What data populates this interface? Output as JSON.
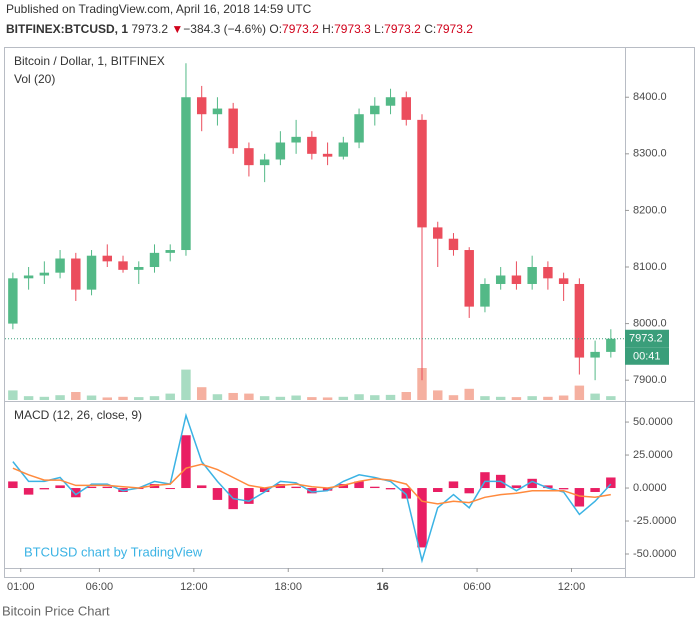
{
  "header": {
    "published": "Published on TradingView.com, April 16, 2018 14:59 UTC",
    "symbol": "BITFINEX:BTCUSD, 1",
    "last": "7973.2",
    "arrow": "▼",
    "change": "−384.3 (−4.6%)",
    "ohlc": [
      {
        "label": "O:",
        "value": "7973.2"
      },
      {
        "label": "H:",
        "value": "7973.3"
      },
      {
        "label": "L:",
        "value": "7973.2"
      },
      {
        "label": "C:",
        "value": "7973.2"
      }
    ]
  },
  "caption": "Bitcoin Price Chart",
  "chart_data": [
    {
      "type": "candlestick",
      "title": "Bitcoin / Dollar, 1, BITFINEX",
      "volume_title": "Vol (20)",
      "watermark": "BTCUSD chart by TradingView",
      "up_color": "#53b987",
      "down_color": "#eb4d5c",
      "volume_up_color": "#a8dcc2",
      "volume_down_color": "#f5b0a0",
      "x": [
        0.5,
        1.5,
        2.5,
        3.5,
        4.5,
        5.5,
        6.5,
        7.5,
        8.5,
        9.5,
        10.5,
        11.5,
        12.5,
        13.5,
        14.5,
        15.5,
        16.5,
        17.5,
        18.5,
        19.5,
        20.5,
        21.5,
        22.5,
        23.5,
        24.5,
        25.5,
        26.5,
        27.5,
        28.5,
        29.5,
        30.5,
        31.5,
        32.5,
        33.5,
        34.5,
        35.5,
        36.5,
        37.5,
        38.5
      ],
      "open": [
        8000,
        8080,
        8085,
        8090,
        8115,
        8060,
        8120,
        8110,
        8095,
        8100,
        8125,
        8130,
        8400,
        8370,
        8380,
        8310,
        8280,
        8290,
        8320,
        8330,
        8300,
        8295,
        8320,
        8370,
        8385,
        8400,
        8360,
        8170,
        8150,
        8130,
        8030,
        8070,
        8085,
        8070,
        8100,
        8080,
        8070,
        7940,
        7950
      ],
      "high": [
        8090,
        8100,
        8110,
        8130,
        8125,
        8130,
        8140,
        8120,
        8110,
        8140,
        8140,
        8460,
        8420,
        8400,
        8390,
        8320,
        8300,
        8340,
        8360,
        8340,
        8320,
        8330,
        8380,
        8400,
        8415,
        8410,
        8370,
        8180,
        8160,
        8135,
        8080,
        8100,
        8110,
        8120,
        8110,
        8090,
        8080,
        7970,
        7990
      ],
      "low": [
        7990,
        8060,
        8070,
        8080,
        8040,
        8050,
        8100,
        8090,
        8070,
        8090,
        8110,
        8120,
        8340,
        8350,
        8300,
        8260,
        8250,
        8280,
        8300,
        8290,
        8280,
        8290,
        8310,
        8350,
        8370,
        8350,
        7900,
        8100,
        8120,
        8010,
        8020,
        8060,
        8060,
        8060,
        8060,
        8040,
        7910,
        7900,
        7940
      ],
      "close": [
        8080,
        8085,
        8090,
        8115,
        8060,
        8120,
        8110,
        8095,
        8100,
        8125,
        8130,
        8400,
        8370,
        8380,
        8310,
        8280,
        8290,
        8320,
        8330,
        8300,
        8295,
        8320,
        8370,
        8385,
        8400,
        8360,
        8170,
        8150,
        8130,
        8030,
        8070,
        8085,
        8070,
        8100,
        8080,
        8070,
        7940,
        7950,
        7973.2
      ],
      "volume": [
        30,
        12,
        10,
        15,
        25,
        14,
        8,
        10,
        9,
        12,
        20,
        95,
        40,
        18,
        22,
        20,
        12,
        10,
        14,
        9,
        8,
        10,
        18,
        15,
        16,
        25,
        100,
        30,
        15,
        35,
        12,
        10,
        9,
        12,
        10,
        14,
        45,
        20,
        12
      ],
      "last_price": 7973.2,
      "countdown": "00:41",
      "xlim": [
        0,
        39.4
      ],
      "xticks": [
        {
          "value": 1,
          "label": "01:00"
        },
        {
          "value": 6,
          "label": "06:00"
        },
        {
          "value": 12,
          "label": "12:00"
        },
        {
          "value": 18,
          "label": "18:00"
        },
        {
          "value": 24,
          "label": "16"
        },
        {
          "value": 30,
          "label": "06:00"
        },
        {
          "value": 36,
          "label": "12:00"
        }
      ],
      "ylim": [
        7865,
        8487
      ],
      "yticks": [
        {
          "value": 7900,
          "label": "7900.0"
        },
        {
          "value": 8000,
          "label": "8000.0"
        },
        {
          "value": 8100,
          "label": "8100.0"
        },
        {
          "value": 8200,
          "label": "8200.0"
        },
        {
          "value": 8300,
          "label": "8300.0"
        },
        {
          "value": 8400,
          "label": "8400.0"
        }
      ]
    },
    {
      "type": "macd",
      "title": "MACD (12, 26, close, 9)",
      "series": [
        {
          "name": "MACD",
          "color": "#3bb3e4",
          "values": [
            20,
            5,
            5,
            8,
            -5,
            3,
            3,
            -2,
            0,
            5,
            3,
            55,
            20,
            5,
            -8,
            -10,
            -3,
            5,
            4,
            -3,
            -2,
            5,
            10,
            8,
            5,
            -5,
            -55,
            -15,
            -5,
            -15,
            5,
            5,
            -2,
            5,
            0,
            -3,
            -20,
            -10,
            3
          ]
        },
        {
          "name": "Signal",
          "color": "#ff8a3d",
          "values": [
            15,
            10,
            6,
            6,
            2,
            2,
            2,
            1,
            0,
            2,
            3,
            15,
            18,
            14,
            8,
            2,
            0,
            2,
            3,
            1,
            0,
            2,
            5,
            7,
            6,
            3,
            -10,
            -12,
            -10,
            -11,
            -7,
            -5,
            -4,
            -2,
            -2,
            -2,
            -6,
            -7,
            -5
          ]
        }
      ],
      "histogram": {
        "color": "#e91e63",
        "values": [
          5,
          -5,
          -1,
          2,
          -7,
          1,
          1,
          -3,
          0,
          3,
          0,
          40,
          2,
          -9,
          -16,
          -12,
          -3,
          3,
          1,
          -4,
          -2,
          3,
          5,
          1,
          -1,
          -8,
          -45,
          -3,
          5,
          -4,
          12,
          10,
          2,
          7,
          2,
          -1,
          -14,
          -3,
          8
        ]
      },
      "ylim": [
        -60.6,
        65.2
      ],
      "yticks": [
        {
          "value": -50,
          "label": "-50.0000"
        },
        {
          "value": -25,
          "label": "-25.0000"
        },
        {
          "value": 0,
          "label": "0.0000"
        },
        {
          "value": 25,
          "label": "25.0000"
        },
        {
          "value": 50,
          "label": "50.0000"
        }
      ]
    }
  ]
}
